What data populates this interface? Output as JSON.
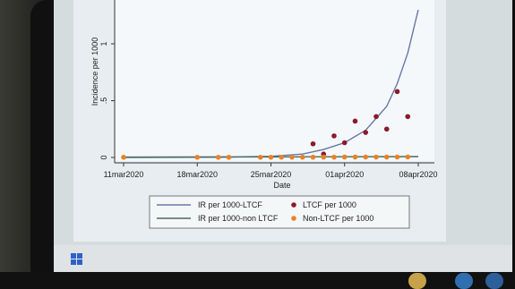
{
  "chart_data": {
    "type": "scatter",
    "xlabel": "Date",
    "ylabel": "Incidence per 1000",
    "x_ticks": [
      "11mar2020",
      "18mar2020",
      "25mar2020",
      "01apr2020",
      "08apr2020"
    ],
    "y_ticks": [
      "0",
      ".5",
      "1"
    ],
    "x_range": [
      "11mar2020",
      "08apr2020"
    ],
    "y_range": [
      0,
      1.25
    ],
    "legend_position": "bottom",
    "series": [
      {
        "name": "LTCF per 1000",
        "type": "scatter",
        "color": "#8b1a2b",
        "x": [
          "29mar2020",
          "30mar2020",
          "31mar2020",
          "01apr2020",
          "02apr2020",
          "03apr2020",
          "04apr2020",
          "05apr2020",
          "06apr2020",
          "07apr2020"
        ],
        "y": [
          0.12,
          0.03,
          0.19,
          0.13,
          0.32,
          0.22,
          0.36,
          0.25,
          0.58,
          0.36
        ]
      },
      {
        "name": "Non-LTCF per 1000",
        "type": "scatter",
        "color": "#e8822a",
        "x": [
          "11mar2020",
          "18mar2020",
          "20mar2020",
          "21mar2020",
          "24mar2020",
          "25mar2020",
          "26mar2020",
          "27mar2020",
          "28mar2020",
          "29mar2020",
          "30mar2020",
          "31mar2020",
          "01apr2020",
          "02apr2020",
          "03apr2020",
          "04apr2020",
          "05apr2020",
          "06apr2020",
          "07apr2020"
        ],
        "y": [
          0.002,
          0.002,
          0.002,
          0.002,
          0.002,
          0.002,
          0.003,
          0.003,
          0.003,
          0.003,
          0.003,
          0.003,
          0.004,
          0.004,
          0.004,
          0.004,
          0.004,
          0.004,
          0.005
        ]
      },
      {
        "name": "IR per 1000-LTCF",
        "type": "line",
        "color": "#6a76a8",
        "x": [
          "11mar2020",
          "20mar2020",
          "25mar2020",
          "28mar2020",
          "30mar2020",
          "01apr2020",
          "03apr2020",
          "05apr2020",
          "06apr2020",
          "07apr2020",
          "08apr2020"
        ],
        "y": [
          0.0,
          0.002,
          0.01,
          0.03,
          0.07,
          0.13,
          0.24,
          0.45,
          0.65,
          0.92,
          1.3
        ]
      },
      {
        "name": "IR per 1000-non LTCF",
        "type": "line",
        "color": "#4a6a5a",
        "x": [
          "11mar2020",
          "08apr2020"
        ],
        "y": [
          0.003,
          0.008
        ]
      }
    ]
  },
  "legend": {
    "items": [
      {
        "label": "IR per 1000-LTCF",
        "symbol": "line",
        "color": "#6a76a8"
      },
      {
        "label": "LTCF per 1000",
        "symbol": "dot",
        "color": "#8b1a2b"
      },
      {
        "label": "IR per 1000-non LTCF",
        "symbol": "line",
        "color": "#4a6a5a"
      },
      {
        "label": "Non-LTCF per 1000",
        "symbol": "dot",
        "color": "#e8822a"
      }
    ]
  },
  "taskbar": {
    "start_icon": "windows-logo-icon"
  }
}
